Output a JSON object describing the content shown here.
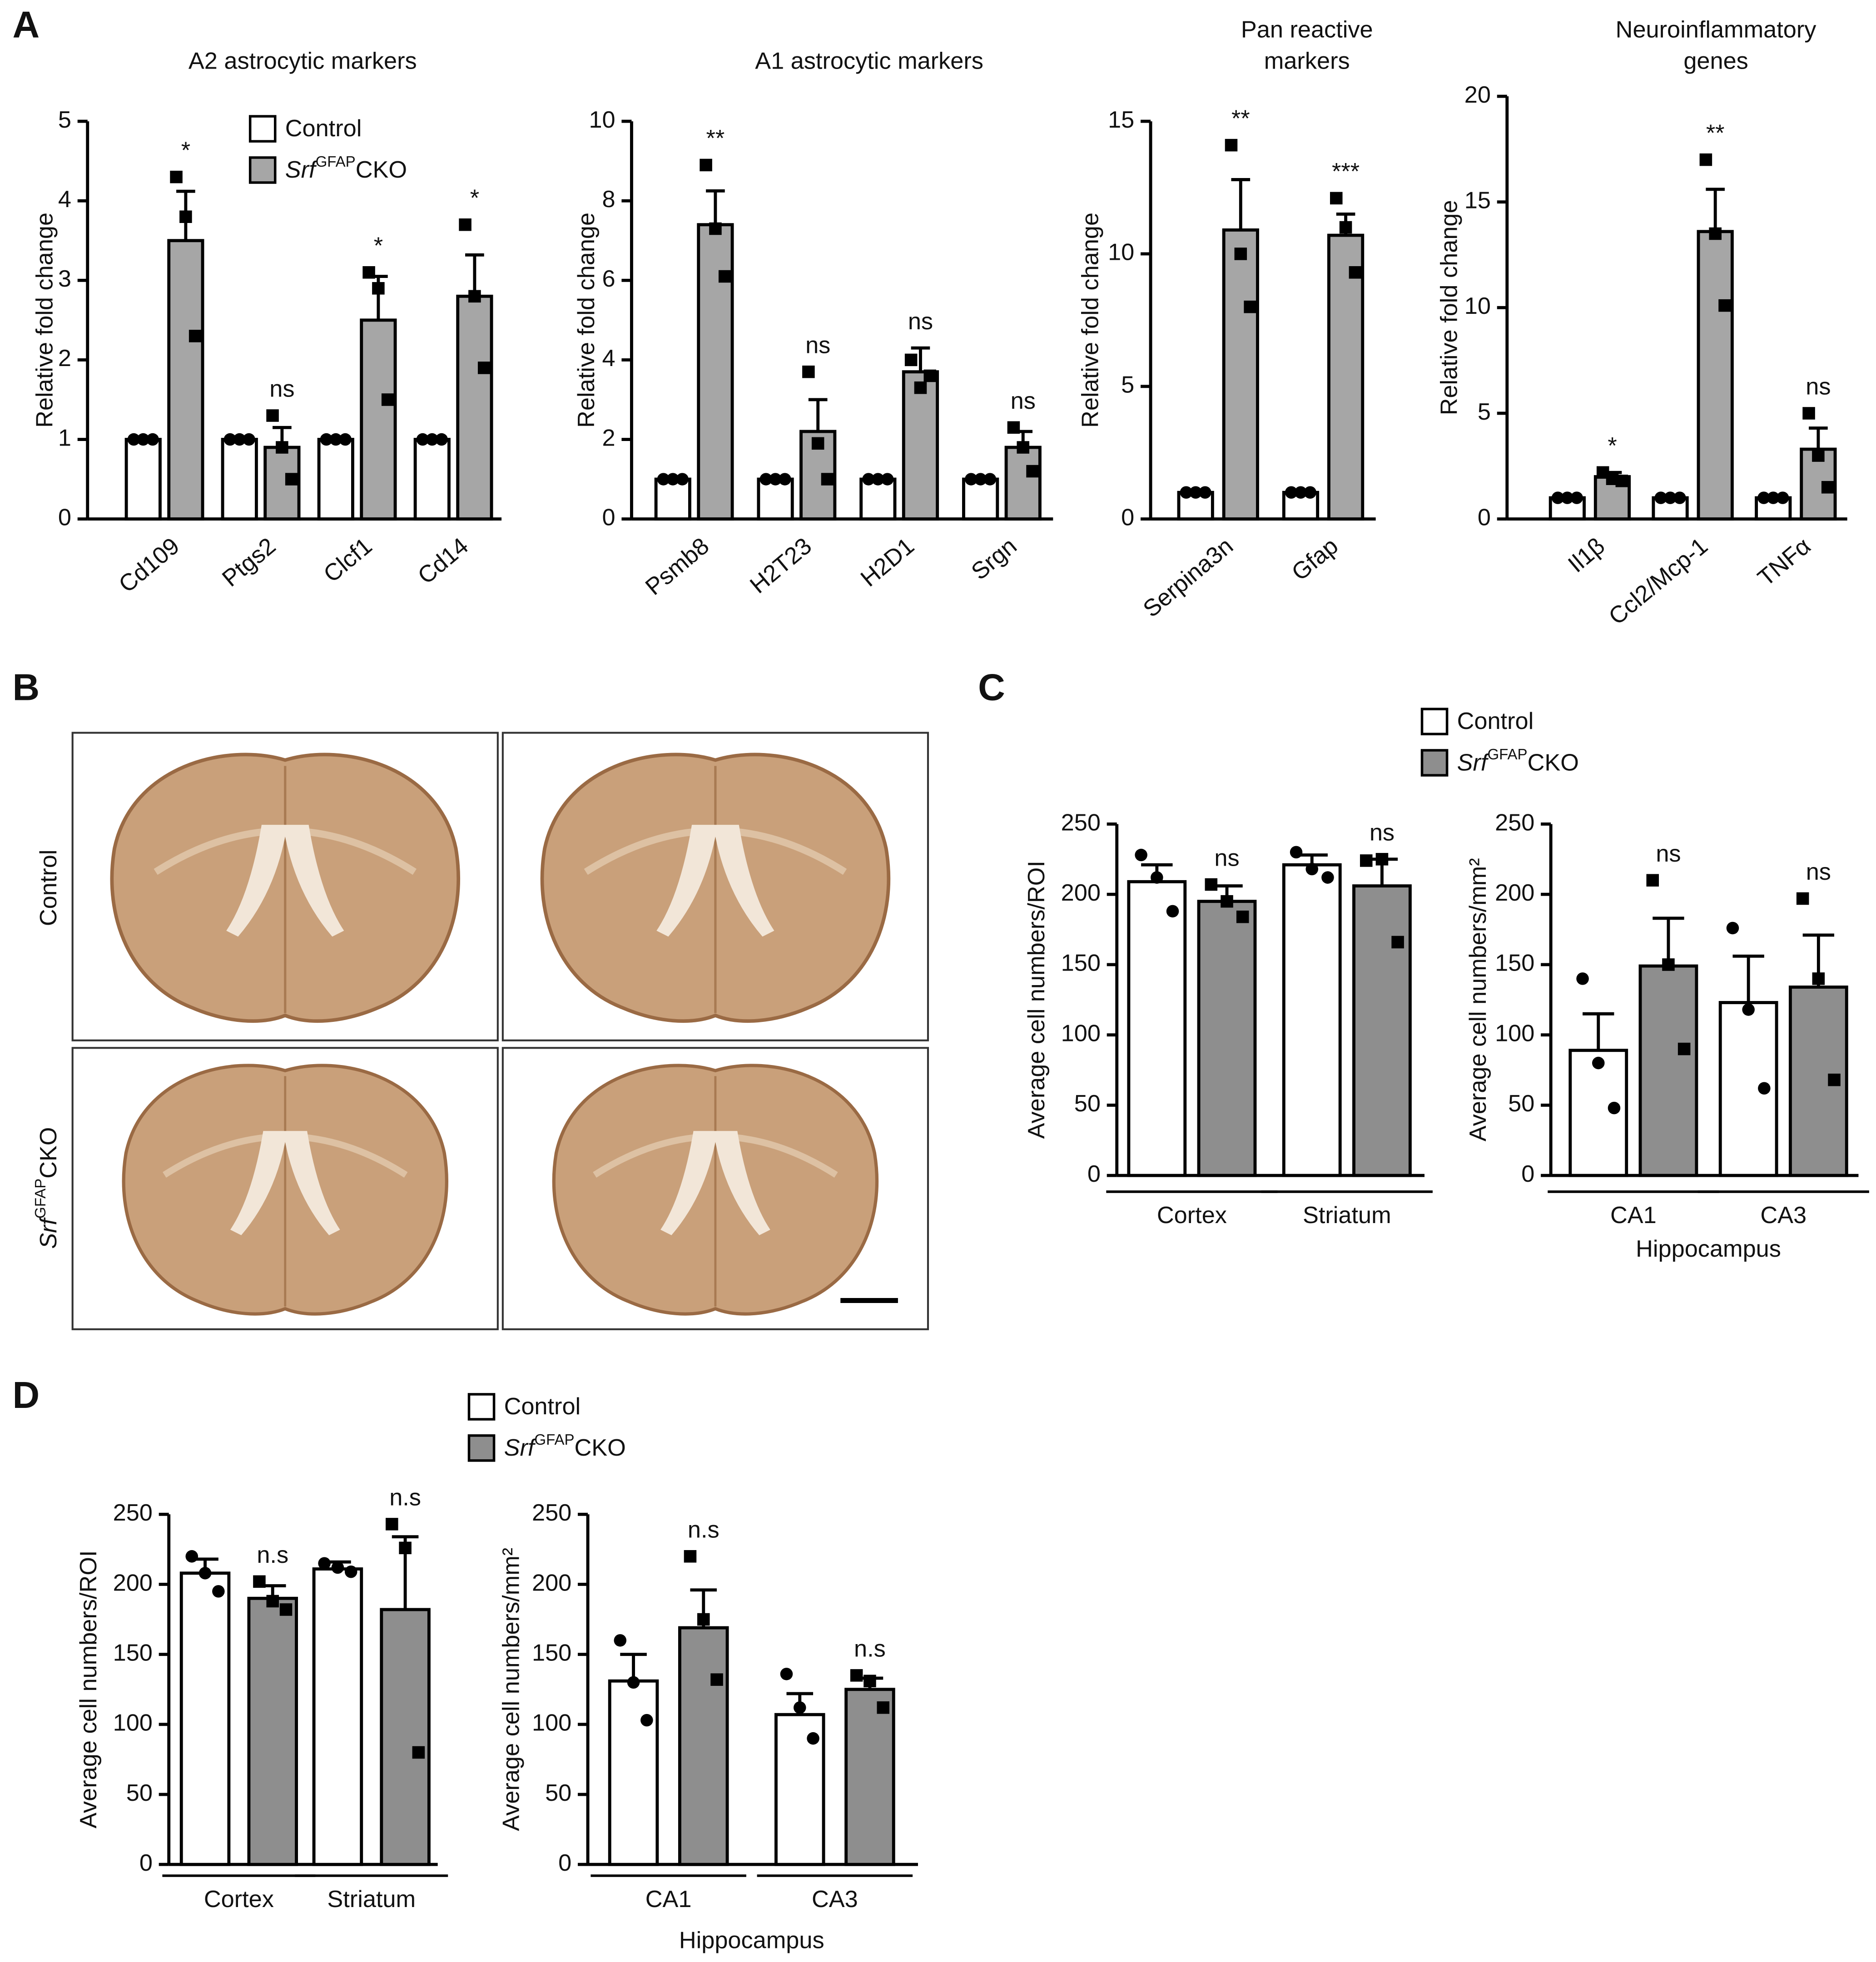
{
  "panel_labels": [
    "A",
    "B",
    "C",
    "D"
  ],
  "panel_b": {
    "row_labels": [
      "Control",
      [
        "Srf",
        "GFAP",
        "CKO"
      ]
    ]
  },
  "chart_data": [
    {
      "type": "bar",
      "title": "A2 astrocytic markers",
      "ylabel": "Relative fold change",
      "categories": [
        "Cd109",
        "Ptgs2",
        "Clcf1",
        "Cd14"
      ],
      "ylim": [
        0,
        5
      ],
      "yticks": [
        0,
        1,
        2,
        3,
        4,
        5
      ],
      "legend": true,
      "series": [
        {
          "name": "Control",
          "color": "#ffffff",
          "marker": "circle",
          "values": [
            1,
            1,
            1,
            1
          ],
          "points": [
            [
              1,
              1,
              1
            ],
            [
              1,
              1,
              1
            ],
            [
              1,
              1,
              1
            ],
            [
              1,
              1,
              1
            ]
          ]
        },
        {
          "name": [
            "Srf",
            "GFAP",
            "CKO"
          ],
          "color": "#a6a6a6",
          "marker": "square",
          "values": [
            3.5,
            0.9,
            2.5,
            2.8
          ],
          "errors": [
            0.62,
            0.25,
            0.55,
            0.52
          ],
          "points": [
            [
              4.3,
              3.8,
              2.3
            ],
            [
              1.3,
              0.9,
              0.5
            ],
            [
              3.1,
              2.9,
              1.5
            ],
            [
              3.7,
              2.8,
              1.9
            ]
          ],
          "annotations": [
            "*",
            "ns",
            "*",
            "*"
          ]
        }
      ]
    },
    {
      "type": "bar",
      "title": "A1 astrocytic markers",
      "ylabel": "Relative fold change",
      "categories": [
        "Psmb8",
        "H2T23",
        "H2D1",
        "Srgn"
      ],
      "ylim": [
        0,
        10
      ],
      "yticks": [
        0,
        2,
        4,
        6,
        8,
        10
      ],
      "series": [
        {
          "color": "#ffffff",
          "marker": "circle",
          "values": [
            1,
            1,
            1,
            1
          ],
          "points": [
            [
              1,
              1,
              1
            ],
            [
              1,
              1,
              1
            ],
            [
              1,
              1,
              1
            ],
            [
              1,
              1,
              1
            ]
          ]
        },
        {
          "color": "#a6a6a6",
          "marker": "square",
          "values": [
            7.4,
            2.2,
            3.7,
            1.8
          ],
          "errors": [
            0.85,
            0.8,
            0.6,
            0.4
          ],
          "points": [
            [
              8.9,
              7.3,
              6.1
            ],
            [
              3.7,
              1.9,
              1.0
            ],
            [
              4.0,
              3.3,
              3.6
            ],
            [
              2.3,
              1.8,
              1.2
            ]
          ],
          "annotations": [
            "**",
            "ns",
            "ns",
            "ns"
          ]
        }
      ]
    },
    {
      "type": "bar",
      "title": [
        "Pan reactive",
        "markers"
      ],
      "ylabel": "Relative fold change",
      "categories": [
        "Serpina3n",
        "Gfap"
      ],
      "ylim": [
        0,
        15
      ],
      "yticks": [
        0,
        5,
        10,
        15
      ],
      "series": [
        {
          "color": "#ffffff",
          "marker": "circle",
          "values": [
            1,
            1
          ],
          "points": [
            [
              1,
              1,
              1
            ],
            [
              1,
              1,
              1
            ]
          ]
        },
        {
          "color": "#a6a6a6",
          "marker": "square",
          "values": [
            10.9,
            10.7
          ],
          "errors": [
            1.9,
            0.8
          ],
          "points": [
            [
              14.1,
              10.0,
              8.0
            ],
            [
              12.1,
              11.0,
              9.3
            ]
          ],
          "annotations": [
            "**",
            "***"
          ]
        }
      ]
    },
    {
      "type": "bar",
      "title": [
        "Neuroinflammatory",
        "genes"
      ],
      "ylabel": "Relative fold change",
      "categories": [
        "Il1β",
        "Ccl2/Mcp-1",
        "TNFα"
      ],
      "ylim": [
        0,
        20
      ],
      "yticks": [
        0,
        5,
        10,
        15,
        20
      ],
      "series": [
        {
          "color": "#ffffff",
          "marker": "circle",
          "values": [
            1,
            1,
            1
          ],
          "points": [
            [
              1,
              1,
              1
            ],
            [
              1,
              1,
              1
            ],
            [
              1,
              1,
              1
            ]
          ]
        },
        {
          "color": "#a6a6a6",
          "marker": "square",
          "values": [
            2.0,
            13.6,
            3.3
          ],
          "errors": [
            0.2,
            2.0,
            1.0
          ],
          "points": [
            [
              2.2,
              1.9,
              1.8
            ],
            [
              17.0,
              13.5,
              10.1
            ],
            [
              5.0,
              3.0,
              1.5
            ]
          ],
          "annotations": [
            "*",
            "**",
            "ns"
          ]
        }
      ]
    },
    {
      "type": "bar",
      "ylabel": "Average cell numbers/ROI",
      "categories": [
        "Cortex",
        "Striatum"
      ],
      "ylim": [
        0,
        250
      ],
      "yticks": [
        0,
        50,
        100,
        150,
        200,
        250
      ],
      "legend": true,
      "series": [
        {
          "name": "Control",
          "color": "#ffffff",
          "marker": "circle",
          "values": [
            209,
            221
          ],
          "errors": [
            12,
            7
          ],
          "points": [
            [
              228,
              212,
              188
            ],
            [
              230,
              218,
              212
            ]
          ]
        },
        {
          "name": [
            "Srf",
            "GFAP",
            "CKO"
          ],
          "color": "#8e8e8e",
          "marker": "square",
          "values": [
            195,
            206
          ],
          "errors": [
            11,
            19
          ],
          "points": [
            [
              207,
              195,
              184
            ],
            [
              224,
              225,
              166
            ]
          ],
          "annotations": [
            "ns",
            "ns"
          ]
        }
      ]
    },
    {
      "type": "bar",
      "ylabel": "Average cell numbers/mm²",
      "xlabel": "Hippocampus",
      "categories": [
        "CA1",
        "CA3"
      ],
      "ylim": [
        0,
        250
      ],
      "yticks": [
        0,
        50,
        100,
        150,
        200,
        250
      ],
      "series": [
        {
          "color": "#ffffff",
          "marker": "circle",
          "values": [
            89,
            123
          ],
          "errors": [
            26,
            33
          ],
          "points": [
            [
              140,
              80,
              48
            ],
            [
              176,
              118,
              62
            ]
          ]
        },
        {
          "color": "#8e8e8e",
          "marker": "square",
          "values": [
            149,
            134
          ],
          "errors": [
            34,
            37
          ],
          "points": [
            [
              210,
              150,
              90
            ],
            [
              197,
              140,
              68
            ]
          ],
          "annotations": [
            "ns",
            "ns"
          ]
        }
      ]
    },
    {
      "type": "bar",
      "ylabel": "Average cell numbers/ROI",
      "categories": [
        "Cortex",
        "Striatum"
      ],
      "ylim": [
        0,
        250
      ],
      "yticks": [
        0,
        50,
        100,
        150,
        200,
        250
      ],
      "legend": true,
      "series": [
        {
          "name": "Control",
          "color": "#ffffff",
          "marker": "circle",
          "values": [
            208,
            211
          ],
          "errors": [
            10,
            5
          ],
          "points": [
            [
              220,
              208,
              195
            ],
            [
              215,
              212,
              209
            ]
          ]
        },
        {
          "name": [
            "Srf",
            "GFAP",
            "CKO"
          ],
          "color": "#8e8e8e",
          "marker": "square",
          "values": [
            190,
            182
          ],
          "errors": [
            9,
            52
          ],
          "points": [
            [
              202,
              188,
              182
            ],
            [
              243,
              226,
              80
            ]
          ],
          "annotations": [
            "n.s",
            "n.s"
          ]
        }
      ]
    },
    {
      "type": "bar",
      "ylabel": "Average cell numbers/mm²",
      "xlabel": "Hippocampus",
      "categories": [
        "CA1",
        "CA3"
      ],
      "ylim": [
        0,
        250
      ],
      "yticks": [
        0,
        50,
        100,
        150,
        200,
        250
      ],
      "series": [
        {
          "color": "#ffffff",
          "marker": "circle",
          "values": [
            131,
            107
          ],
          "errors": [
            19,
            15
          ],
          "points": [
            [
              160,
              130,
              103
            ],
            [
              136,
              112,
              90
            ]
          ]
        },
        {
          "color": "#8e8e8e",
          "marker": "square",
          "values": [
            169,
            125
          ],
          "errors": [
            27,
            8
          ],
          "points": [
            [
              220,
              175,
              132
            ],
            [
              135,
              131,
              112
            ]
          ],
          "annotations": [
            "n.s",
            "n.s"
          ]
        }
      ]
    }
  ]
}
